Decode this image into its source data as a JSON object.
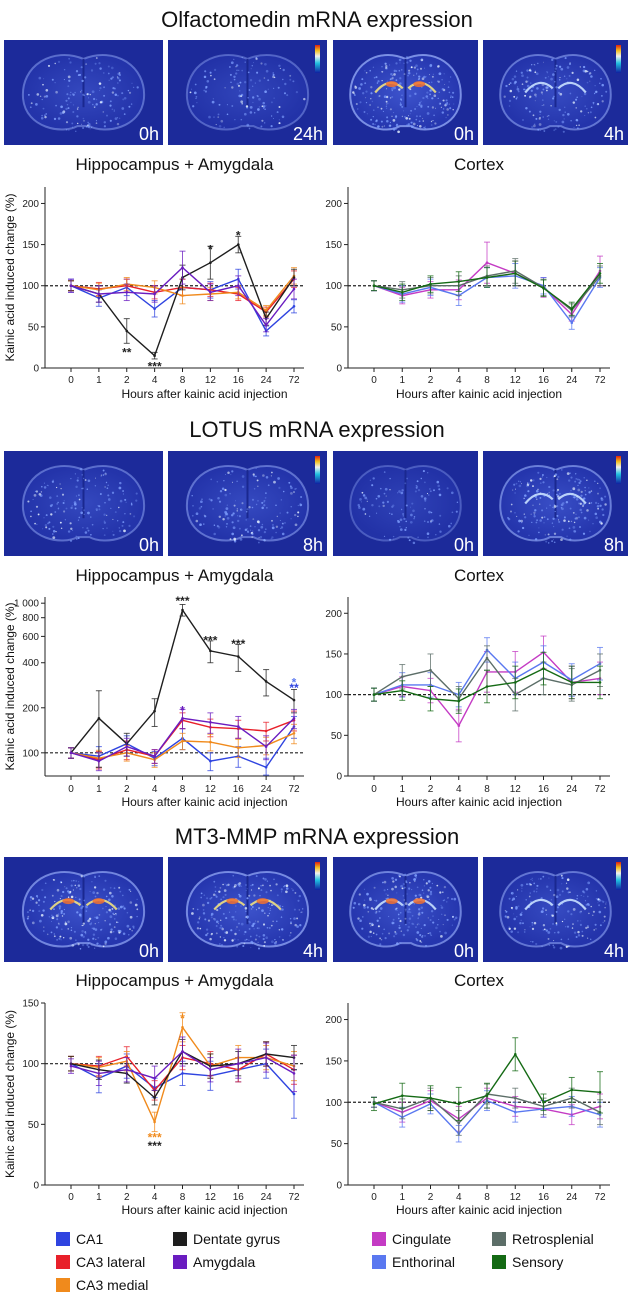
{
  "colors": {
    "CA1": "#2f44e0",
    "CA3 lateral": "#e8202a",
    "CA3 medial": "#f08a1c",
    "Dentate gyrus": "#1e1e1e",
    "Amygdala": "#6a1cc0",
    "Cingulate": "#c43bc4",
    "Enthorinal": "#5a78f0",
    "Retrosplenial": "#5c6e68",
    "Sensory": "#146a14",
    "scan_bg": "#1c2a9a"
  },
  "x_axis_title": "Hours after kainic acid injection",
  "y_axis_title": "Kainic acid induced change (%)",
  "legend": {
    "hippocampus": [
      "CA1",
      "CA3 lateral",
      "CA3 medial",
      "Dentate gyrus",
      "Amygdala"
    ],
    "cortex": [
      "Cingulate",
      "Enthorinal",
      "Retrosplenial",
      "Sensory"
    ]
  },
  "panels": [
    {
      "title": "Olfactomedin mRNA expression",
      "images": [
        {
          "label": "0h",
          "region": "hippocampus",
          "intensity": 0.35,
          "icon": "brain-section-icon"
        },
        {
          "label": "24h",
          "region": "hippocampus",
          "intensity": 0.25,
          "icon": "brain-section-icon"
        },
        {
          "label": "0h",
          "region": "cortex",
          "intensity": 0.75,
          "icon": "brain-section-icon"
        },
        {
          "label": "4h",
          "region": "cortex",
          "intensity": 0.45,
          "icon": "brain-section-icon"
        }
      ]
    },
    {
      "title": "LOTUS mRNA expression",
      "images": [
        {
          "label": "0h",
          "region": "hippocampus",
          "intensity": 0.35,
          "icon": "brain-section-icon"
        },
        {
          "label": "8h",
          "region": "hippocampus",
          "intensity": 0.4,
          "icon": "brain-section-icon"
        },
        {
          "label": "0h",
          "region": "cortex",
          "intensity": 0.15,
          "icon": "brain-section-icon"
        },
        {
          "label": "8h",
          "region": "cortex",
          "intensity": 0.55,
          "icon": "brain-section-icon"
        }
      ]
    },
    {
      "title": "MT3-MMP mRNA expression",
      "images": [
        {
          "label": "0h",
          "region": "hippocampus",
          "intensity": 0.65,
          "icon": "brain-section-icon"
        },
        {
          "label": "4h",
          "region": "hippocampus",
          "intensity": 0.7,
          "icon": "brain-section-icon"
        },
        {
          "label": "0h",
          "region": "cortex",
          "intensity": 0.6,
          "icon": "brain-section-icon"
        },
        {
          "label": "4h",
          "region": "cortex",
          "intensity": 0.45,
          "icon": "brain-section-icon"
        }
      ]
    }
  ],
  "chart_data": [
    {
      "type": "line",
      "title": "Hippocampus + Amygdala",
      "xlabel": "Hours after kainic acid injection",
      "ylabel": "Kainic acid induced change (%)",
      "categories": [
        "0",
        "1",
        "2",
        "4",
        "8",
        "12",
        "16",
        "24",
        "72"
      ],
      "y_scale": "linear",
      "ylim": [
        0,
        220
      ],
      "yticks": [
        0,
        50,
        100,
        150,
        200
      ],
      "yticklabels": [
        "0",
        "50",
        "100",
        "150",
        "200"
      ],
      "reference_line": 100,
      "series": [
        {
          "name": "CA1",
          "values": [
            100,
            85,
            98,
            72,
            98,
            95,
            108,
            45,
            75
          ],
          "errors": [
            8,
            10,
            10,
            10,
            10,
            10,
            12,
            6,
            8
          ]
        },
        {
          "name": "CA3 lateral",
          "values": [
            100,
            96,
            100,
            92,
            98,
            95,
            90,
            68,
            108
          ],
          "errors": [
            6,
            8,
            8,
            8,
            10,
            8,
            8,
            6,
            10
          ]
        },
        {
          "name": "CA3 medial",
          "values": [
            100,
            95,
            102,
            98,
            88,
            90,
            92,
            70,
            112
          ],
          "errors": [
            6,
            8,
            8,
            8,
            10,
            8,
            8,
            6,
            10
          ]
        },
        {
          "name": "Dentate gyrus",
          "values": [
            100,
            90,
            45,
            15,
            110,
            128,
            150,
            60,
            110
          ],
          "errors": [
            6,
            10,
            15,
            4,
            15,
            20,
            10,
            8,
            10
          ]
        },
        {
          "name": "Amygdala",
          "values": [
            100,
            90,
            92,
            90,
            122,
            92,
            100,
            52,
            96
          ],
          "errors": [
            8,
            10,
            10,
            10,
            20,
            10,
            12,
            8,
            12
          ]
        }
      ],
      "annotations": [
        {
          "x": "2",
          "y": 20,
          "text": "**"
        },
        {
          "x": "4",
          "y": 3,
          "text": "***"
        },
        {
          "x": "12",
          "y": 145,
          "text": "*"
        },
        {
          "x": "16",
          "y": 162,
          "text": "*"
        }
      ]
    },
    {
      "type": "line",
      "title": "Cortex",
      "xlabel": "Hours after kainic acid injection",
      "ylabel": "",
      "categories": [
        "0",
        "1",
        "2",
        "4",
        "8",
        "12",
        "16",
        "24",
        "72"
      ],
      "y_scale": "linear",
      "ylim": [
        0,
        220
      ],
      "yticks": [
        0,
        50,
        100,
        150,
        200
      ],
      "yticklabels": [
        "0",
        "50",
        "100",
        "150",
        "200"
      ],
      "reference_line": 100,
      "series": [
        {
          "name": "Cingulate",
          "values": [
            100,
            88,
            95,
            95,
            128,
            115,
            98,
            65,
            118
          ],
          "errors": [
            6,
            10,
            10,
            12,
            25,
            15,
            12,
            8,
            18
          ]
        },
        {
          "name": "Enthorinal",
          "values": [
            100,
            90,
            98,
            88,
            110,
            112,
            100,
            55,
            110
          ],
          "errors": [
            6,
            10,
            10,
            12,
            12,
            15,
            10,
            8,
            12
          ]
        },
        {
          "name": "Retrosplenial",
          "values": [
            100,
            95,
            100,
            100,
            112,
            118,
            98,
            70,
            112
          ],
          "errors": [
            6,
            10,
            10,
            12,
            12,
            15,
            10,
            8,
            12
          ]
        },
        {
          "name": "Sensory",
          "values": [
            100,
            92,
            102,
            105,
            110,
            115,
            97,
            72,
            115
          ],
          "errors": [
            6,
            10,
            10,
            12,
            12,
            15,
            10,
            8,
            12
          ]
        }
      ],
      "annotations": []
    },
    {
      "type": "line",
      "title": "Hippocampus + Amygdala",
      "xlabel": "Hours after kainic acid injection",
      "ylabel": "Kainic acid induced change (%)",
      "categories": [
        "0",
        "1",
        "2",
        "4",
        "8",
        "12",
        "16",
        "24",
        "72"
      ],
      "y_scale": "log",
      "ylim": [
        70,
        1100
      ],
      "yticks": [
        100,
        200,
        400,
        600,
        800,
        1000
      ],
      "yticklabels": [
        "100",
        "200",
        "400",
        "600",
        "800",
        "1 000"
      ],
      "reference_line": 100,
      "series": [
        {
          "name": "CA1",
          "values": [
            100,
            95,
            115,
            92,
            125,
            88,
            95,
            80,
            150
          ],
          "errors": [
            8,
            15,
            15,
            10,
            20,
            12,
            15,
            12,
            25
          ]
        },
        {
          "name": "CA3 lateral",
          "values": [
            100,
            90,
            105,
            95,
            165,
            148,
            145,
            140,
            165
          ],
          "errors": [
            8,
            12,
            15,
            10,
            20,
            20,
            20,
            20,
            25
          ]
        },
        {
          "name": "CA3 medial",
          "values": [
            100,
            92,
            100,
            90,
            120,
            118,
            108,
            112,
            135
          ],
          "errors": [
            8,
            12,
            12,
            10,
            15,
            15,
            15,
            15,
            20
          ]
        },
        {
          "name": "Dentate gyrus",
          "values": [
            100,
            170,
            115,
            190,
            900,
            480,
            440,
            300,
            225
          ],
          "errors": [
            8,
            90,
            20,
            40,
            80,
            80,
            90,
            60,
            40
          ]
        },
        {
          "name": "Amygdala",
          "values": [
            100,
            88,
            110,
            95,
            170,
            160,
            150,
            110,
            170
          ],
          "errors": [
            8,
            12,
            15,
            10,
            25,
            25,
            25,
            20,
            25
          ]
        }
      ],
      "annotations": [
        {
          "x": "8",
          "y": 1050,
          "text": "***"
        },
        {
          "x": "12",
          "y": 570,
          "text": "***"
        },
        {
          "x": "16",
          "y": 540,
          "text": "***"
        },
        {
          "x": "8",
          "y": 195,
          "text": "*"
        },
        {
          "x": "72",
          "y": 300,
          "text": "*"
        },
        {
          "x": "72",
          "y": 275,
          "text": "**"
        }
      ]
    },
    {
      "type": "line",
      "title": "Cortex",
      "xlabel": "Hours after kainic acid injection",
      "ylabel": "",
      "categories": [
        "0",
        "1",
        "2",
        "4",
        "8",
        "12",
        "16",
        "24",
        "72"
      ],
      "y_scale": "linear",
      "ylim": [
        0,
        220
      ],
      "yticks": [
        0,
        50,
        100,
        150,
        200
      ],
      "yticklabels": [
        "0",
        "50",
        "100",
        "150",
        "200"
      ],
      "reference_line": 100,
      "series": [
        {
          "name": "Cingulate",
          "values": [
            100,
            110,
            105,
            62,
            128,
            128,
            152,
            115,
            120
          ],
          "errors": [
            8,
            12,
            15,
            20,
            25,
            25,
            20,
            20,
            20
          ]
        },
        {
          "name": "Enthorinal",
          "values": [
            100,
            112,
            112,
            100,
            155,
            120,
            140,
            118,
            138
          ],
          "errors": [
            8,
            15,
            15,
            15,
            15,
            20,
            20,
            20,
            20
          ]
        },
        {
          "name": "Retrosplenial",
          "values": [
            100,
            122,
            130,
            95,
            145,
            100,
            120,
            112,
            130
          ],
          "errors": [
            8,
            15,
            20,
            15,
            15,
            20,
            20,
            20,
            20
          ]
        },
        {
          "name": "Sensory",
          "values": [
            100,
            105,
            95,
            92,
            110,
            115,
            132,
            115,
            115
          ],
          "errors": [
            8,
            12,
            15,
            15,
            20,
            20,
            20,
            20,
            20
          ]
        }
      ],
      "annotations": []
    },
    {
      "type": "line",
      "title": "Hippocampus + Amygdala",
      "xlabel": "Hours after kainic acid injection",
      "ylabel": "Kainic acid induced change (%)",
      "categories": [
        "0",
        "1",
        "2",
        "4",
        "8",
        "12",
        "16",
        "24",
        "72"
      ],
      "y_scale": "linear",
      "ylim": [
        0,
        150
      ],
      "yticks": [
        0,
        50,
        100,
        150
      ],
      "yticklabels": [
        "0",
        "50",
        "100",
        "150"
      ],
      "reference_line": 100,
      "series": [
        {
          "name": "CA1",
          "values": [
            100,
            88,
            98,
            80,
            92,
            90,
            95,
            100,
            75
          ],
          "errors": [
            6,
            12,
            10,
            8,
            10,
            12,
            10,
            12,
            20
          ]
        },
        {
          "name": "CA3 lateral",
          "values": [
            100,
            98,
            106,
            78,
            105,
            100,
            95,
            108,
            95
          ],
          "errors": [
            6,
            8,
            8,
            8,
            10,
            10,
            10,
            10,
            12
          ]
        },
        {
          "name": "CA3 medial",
          "values": [
            100,
            97,
            102,
            52,
            130,
            98,
            105,
            105,
            98
          ],
          "errors": [
            6,
            8,
            8,
            8,
            12,
            10,
            10,
            10,
            12
          ]
        },
        {
          "name": "Dentate gyrus",
          "values": [
            100,
            95,
            92,
            72,
            110,
            98,
            100,
            108,
            105
          ],
          "errors": [
            6,
            8,
            8,
            6,
            10,
            10,
            10,
            10,
            10
          ]
        },
        {
          "name": "Amygdala",
          "values": [
            98,
            92,
            95,
            88,
            110,
            95,
            100,
            105,
            92
          ],
          "errors": [
            6,
            10,
            10,
            10,
            12,
            10,
            12,
            12,
            15
          ]
        }
      ],
      "annotations": [
        {
          "x": "8",
          "y": 138,
          "text": "*"
        },
        {
          "x": "4",
          "y": 40,
          "text": "***"
        },
        {
          "x": "4",
          "y": 33,
          "text": "***"
        }
      ]
    },
    {
      "type": "line",
      "title": "Cortex",
      "xlabel": "Hours after kainic acid injection",
      "ylabel": "",
      "categories": [
        "0",
        "1",
        "2",
        "4",
        "8",
        "12",
        "16",
        "24",
        "72"
      ],
      "y_scale": "linear",
      "ylim": [
        0,
        220
      ],
      "yticks": [
        0,
        50,
        100,
        150,
        200
      ],
      "yticklabels": [
        "0",
        "50",
        "100",
        "150",
        "200"
      ],
      "reference_line": 100,
      "series": [
        {
          "name": "Cingulate",
          "values": [
            100,
            88,
            102,
            80,
            105,
            95,
            92,
            85,
            95
          ],
          "errors": [
            6,
            12,
            12,
            15,
            12,
            12,
            10,
            12,
            15
          ]
        },
        {
          "name": "Enthorinal",
          "values": [
            100,
            82,
            98,
            62,
            102,
            88,
            92,
            95,
            85
          ],
          "errors": [
            6,
            12,
            12,
            10,
            12,
            12,
            10,
            12,
            15
          ]
        },
        {
          "name": "Retrosplenial",
          "values": [
            100,
            92,
            105,
            75,
            110,
            105,
            95,
            105,
            88
          ],
          "errors": [
            6,
            12,
            12,
            15,
            12,
            12,
            10,
            12,
            15
          ]
        },
        {
          "name": "Sensory",
          "values": [
            98,
            108,
            105,
            98,
            108,
            158,
            100,
            115,
            112
          ],
          "errors": [
            8,
            15,
            15,
            20,
            15,
            20,
            10,
            15,
            25
          ]
        }
      ],
      "annotations": []
    }
  ]
}
